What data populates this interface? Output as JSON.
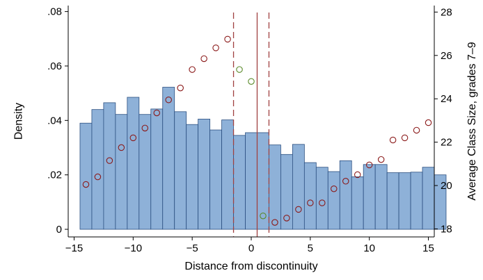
{
  "chart_data": {
    "type": "bar",
    "title": "",
    "xlabel": "Distance from discontinuity",
    "ylabel": "Density",
    "y2label": "Average Class Size, grades 7–9",
    "xlim": [
      -15.5,
      15.5
    ],
    "ylim": [
      -0.0028,
      0.0822
    ],
    "y2lim": [
      17.63,
      28.3
    ],
    "x_ticks": [
      -15,
      -10,
      -5,
      0,
      5,
      10,
      15
    ],
    "x_tick_labels": [
      "−15",
      "−10",
      "−5",
      "0",
      "5",
      "10",
      "15"
    ],
    "y_ticks": [
      0,
      0.02,
      0.04,
      0.06,
      0.08
    ],
    "y_tick_labels": [
      "0",
      ".02",
      ".04",
      ".06",
      ".08"
    ],
    "y2_ticks": [
      18,
      20,
      22,
      24,
      26,
      28
    ],
    "y2_tick_labels": [
      "18",
      "20",
      "22",
      "24",
      "26",
      "28"
    ],
    "grid": false,
    "histogram": {
      "name": "Density",
      "bin_width": 1,
      "bins": [
        {
          "start": -14.5,
          "value": 0.039
        },
        {
          "start": -13.5,
          "value": 0.044
        },
        {
          "start": -12.5,
          "value": 0.0465
        },
        {
          "start": -11.5,
          "value": 0.0422
        },
        {
          "start": -10.5,
          "value": 0.0485
        },
        {
          "start": -9.5,
          "value": 0.0422
        },
        {
          "start": -8.5,
          "value": 0.0442
        },
        {
          "start": -7.5,
          "value": 0.0522
        },
        {
          "start": -6.5,
          "value": 0.0432
        },
        {
          "start": -5.5,
          "value": 0.0385
        },
        {
          "start": -4.5,
          "value": 0.0405
        },
        {
          "start": -3.5,
          "value": 0.0365
        },
        {
          "start": -2.5,
          "value": 0.0402
        },
        {
          "start": -1.5,
          "value": 0.0345
        },
        {
          "start": -0.5,
          "value": 0.0355
        },
        {
          "start": 0.5,
          "value": 0.0355
        },
        {
          "start": 1.5,
          "value": 0.031
        },
        {
          "start": 2.5,
          "value": 0.0275
        },
        {
          "start": 3.5,
          "value": 0.0312
        },
        {
          "start": 4.5,
          "value": 0.0245
        },
        {
          "start": 5.5,
          "value": 0.0228
        },
        {
          "start": 6.5,
          "value": 0.0212
        },
        {
          "start": 7.5,
          "value": 0.0252
        },
        {
          "start": 8.5,
          "value": 0.0193
        },
        {
          "start": 9.5,
          "value": 0.0238
        },
        {
          "start": 10.5,
          "value": 0.0238
        },
        {
          "start": 11.5,
          "value": 0.0208
        },
        {
          "start": 12.5,
          "value": 0.0208
        },
        {
          "start": 13.5,
          "value": 0.021
        },
        {
          "start": 14.5,
          "value": 0.0228
        },
        {
          "start": 15.5,
          "value": 0.02
        }
      ]
    },
    "scatter_series": [
      {
        "axis": "right",
        "color": "#8b1a1a",
        "points": [
          {
            "x": -14,
            "y": 20.05
          },
          {
            "x": -13,
            "y": 20.4
          },
          {
            "x": -12,
            "y": 21.15
          },
          {
            "x": -11,
            "y": 21.75
          },
          {
            "x": -10,
            "y": 22.2
          },
          {
            "x": -9,
            "y": 22.65
          },
          {
            "x": -8,
            "y": 23.35
          },
          {
            "x": -7,
            "y": 23.95
          },
          {
            "x": -6,
            "y": 24.5
          },
          {
            "x": -5,
            "y": 25.35
          },
          {
            "x": -4,
            "y": 25.85
          },
          {
            "x": -3,
            "y": 26.35
          },
          {
            "x": -2,
            "y": 26.75
          },
          {
            "x": 2,
            "y": 18.3
          },
          {
            "x": 3,
            "y": 18.5
          },
          {
            "x": 4,
            "y": 18.9
          },
          {
            "x": 5,
            "y": 19.2
          },
          {
            "x": 6,
            "y": 19.2
          },
          {
            "x": 7,
            "y": 19.85
          },
          {
            "x": 8,
            "y": 20.2
          },
          {
            "x": 9,
            "y": 20.5
          },
          {
            "x": 10,
            "y": 20.95
          },
          {
            "x": 11,
            "y": 21.2
          },
          {
            "x": 12,
            "y": 22.1
          },
          {
            "x": 13,
            "y": 22.2
          },
          {
            "x": 14,
            "y": 22.55
          },
          {
            "x": 15,
            "y": 22.9
          }
        ]
      },
      {
        "axis": "right",
        "color": "#5a8a2a",
        "points": [
          {
            "x": -1,
            "y": 25.35
          },
          {
            "x": 0,
            "y": 24.8
          },
          {
            "x": 1,
            "y": 18.6
          }
        ]
      }
    ],
    "reference_lines": [
      {
        "x": 0.5,
        "style": "solid",
        "color": "#a04040"
      },
      {
        "x": -1.5,
        "style": "dashed",
        "color": "#a04040"
      },
      {
        "x": 1.5,
        "style": "dashed",
        "color": "#a04040"
      }
    ],
    "colors": {
      "bar_fill": "#8eb1d8",
      "bar_stroke": "#2b4f80",
      "axis": "#000000"
    }
  }
}
